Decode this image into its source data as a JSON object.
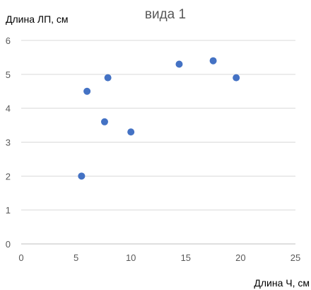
{
  "chart_data": {
    "type": "scatter",
    "title": "вида 1",
    "xlabel": "Длина Ч, см",
    "ylabel": "Длина ЛП, см",
    "xlim": [
      0,
      25
    ],
    "ylim": [
      0,
      6
    ],
    "xticks": [
      0,
      5,
      10,
      15,
      20,
      25
    ],
    "yticks": [
      0,
      1,
      2,
      3,
      4,
      5,
      6
    ],
    "grid": "horizontal",
    "legend": "none",
    "marker_color": "#4472c4",
    "series": [
      {
        "points": [
          {
            "x": 5.5,
            "y": 2.0
          },
          {
            "x": 6.0,
            "y": 4.5
          },
          {
            "x": 7.6,
            "y": 3.6
          },
          {
            "x": 7.9,
            "y": 4.9
          },
          {
            "x": 10.0,
            "y": 3.3
          },
          {
            "x": 14.4,
            "y": 5.3
          },
          {
            "x": 17.5,
            "y": 5.4
          },
          {
            "x": 19.6,
            "y": 4.9
          }
        ]
      }
    ]
  }
}
